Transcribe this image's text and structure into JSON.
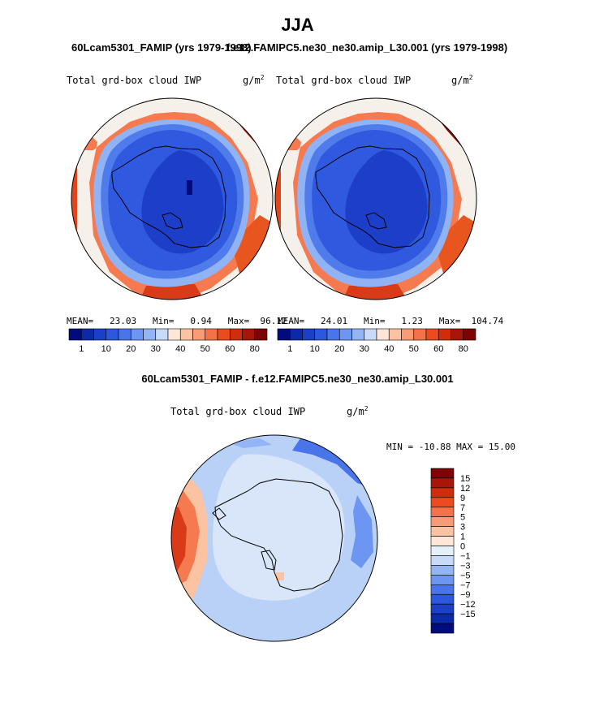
{
  "figure": {
    "season": "JJA",
    "left_case": "60Lcam5301_FAMIP (yrs 1979-1998)",
    "right_case": "f.e12.FAMIPC5.ne30_ne30.amip_L30.001 (yrs 1979-1998)",
    "diff_title": "60Lcam5301_FAMIP - f.e12.FAMIPC5.ne30_ne30.amip_L30.001"
  },
  "panels": {
    "left": {
      "field": "Total grd-box cloud IWP",
      "units": "g/m",
      "units_exp": "2",
      "mean_label": "MEAN=",
      "mean": "23.03",
      "min_label": "Min=",
      "min": "0.94",
      "max_label": "Max=",
      "max": "96.12"
    },
    "right": {
      "field": "Total grd-box cloud IWP",
      "units": "g/m",
      "units_exp": "2",
      "mean_label": "MEAN=",
      "mean": "24.01",
      "min_label": "Min=",
      "min": "1.23",
      "max_label": "Max=",
      "max": "104.74"
    },
    "diff": {
      "field": "Total grd-box cloud IWP",
      "units": "g/m",
      "units_exp": "2",
      "minmax": "MIN = -10.88 MAX =  15.00"
    }
  },
  "colorbar_abs": {
    "colors": [
      "#000c7e",
      "#0a2aa8",
      "#1b3fc6",
      "#2d57de",
      "#4a74ea",
      "#6d96f2",
      "#93b4f5",
      "#c7daf8",
      "#ffe7d8",
      "#fcc3a3",
      "#f99c75",
      "#f57248",
      "#ea4b1f",
      "#cf2d0c",
      "#a8160a",
      "#7d0403"
    ],
    "tick_labels": [
      "1",
      "10",
      "20",
      "30",
      "40",
      "50",
      "60",
      "80"
    ]
  },
  "colorbar_diff": {
    "colors": [
      "#000c7e",
      "#0a2aa8",
      "#1b3fc6",
      "#2d57de",
      "#4a74ea",
      "#6d96f2",
      "#93b4f5",
      "#c7daf8",
      "#e6f0fb",
      "#ffe7d8",
      "#fcc3a3",
      "#f99c75",
      "#f57248",
      "#ea4b1f",
      "#cf2d0c",
      "#a8160a",
      "#7d0403"
    ],
    "tick_labels": [
      "15",
      "12",
      "9",
      "7",
      "5",
      "3",
      "1",
      "0",
      "−1",
      "−3",
      "−5",
      "−7",
      "−9",
      "−12",
      "−15"
    ]
  }
}
